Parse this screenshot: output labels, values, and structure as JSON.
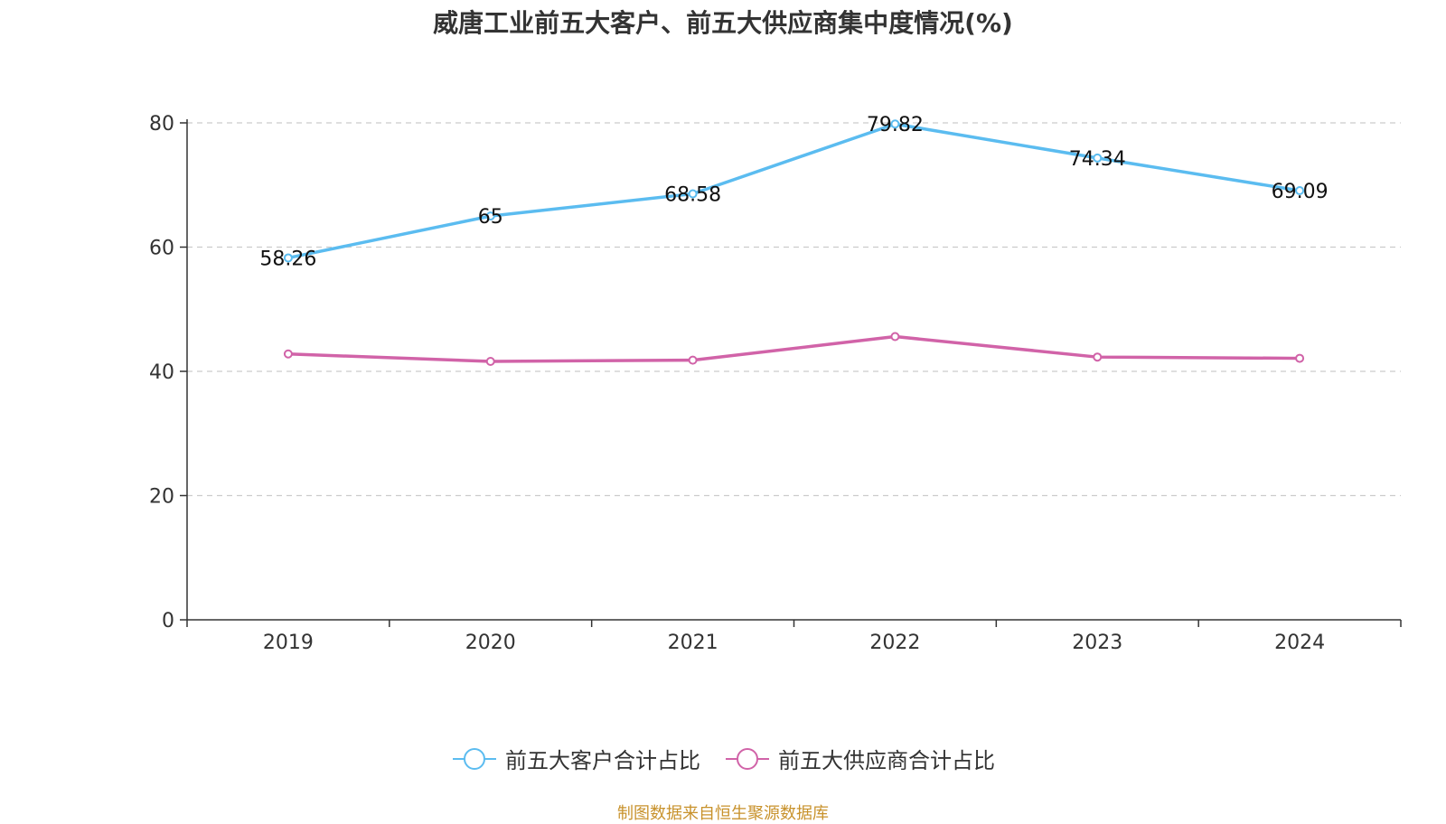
{
  "chart_data": {
    "type": "line",
    "title": "威唐工业前五大客户、前五大供应商集中度情况(%)",
    "categories": [
      "2019",
      "2020",
      "2021",
      "2022",
      "2023",
      "2024"
    ],
    "ylim": [
      0,
      80
    ],
    "yticks": [
      0,
      20,
      40,
      60,
      80
    ],
    "grid": true,
    "legend_position": "bottom",
    "series": [
      {
        "name": "前五大客户合计占比",
        "color": "#5bbcf0",
        "values": [
          58.26,
          65,
          68.58,
          79.82,
          74.34,
          69.09
        ],
        "labels": [
          "58.26",
          "65",
          "68.58",
          "79.82",
          "74.34",
          "69.09"
        ]
      },
      {
        "name": "前五大供应商合计占比",
        "color": "#d163a8",
        "values": [
          42.8,
          41.6,
          41.8,
          45.6,
          42.3,
          42.1
        ]
      }
    ]
  },
  "footer": {
    "source": "制图数据来自恒生聚源数据库"
  }
}
